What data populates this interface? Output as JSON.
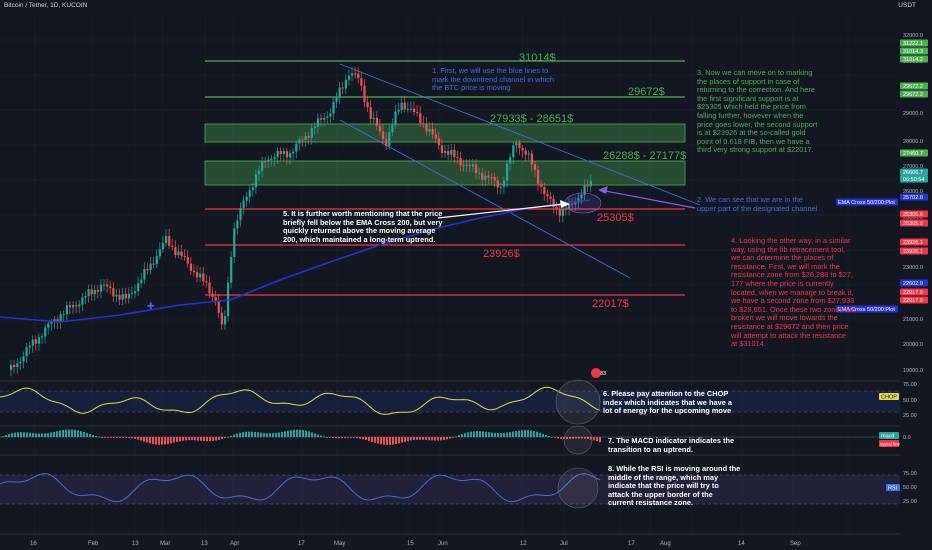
{
  "header": {
    "symbol_title": "Bitcoin / Tether, 1D, KUCOIN",
    "currency": "USDT"
  },
  "colors": {
    "background": "#131722",
    "candle_up": "#26a69a",
    "candle_down": "#ef5350",
    "level_green": "#4caf50",
    "level_red": "#f23645",
    "channel_blue": "#3f6ee0",
    "ema": "#2433d6",
    "chop": "#e6d84a",
    "rsi": "#3f6ee0",
    "note_purple": "#8a5be0"
  },
  "price_axis": {
    "ticks": [
      "32000.0",
      "30000.0",
      "29000.0",
      "28000.0",
      "27000.0",
      "26000.0",
      "25000.0",
      "24000.0",
      "23000.0",
      "22000.0",
      "21000.0",
      "20000.0",
      "19000.0"
    ],
    "tags": [
      {
        "label": "31222.1",
        "color": "#4caf50"
      },
      {
        "label": "31014.3",
        "color": "#4caf50"
      },
      {
        "label": "31014.2",
        "color": "#4caf50"
      },
      {
        "label": "29672.2",
        "color": "#4caf50"
      },
      {
        "label": "29672.2",
        "color": "#4caf50"
      },
      {
        "label": "27460.7",
        "color": "#4caf50"
      },
      {
        "label": "26606.7",
        "color": "#26a69a"
      },
      {
        "label": "06:50:54",
        "color": "#26a69a"
      },
      {
        "label": "25702.8",
        "color": "#2433d6"
      },
      {
        "label": "25305.9",
        "color": "#f23645"
      },
      {
        "label": "25305.9",
        "color": "#f23645"
      },
      {
        "label": "23926.1",
        "color": "#f23645"
      },
      {
        "label": "23926.1",
        "color": "#f23645"
      },
      {
        "label": "22602.9",
        "color": "#2433d6"
      },
      {
        "label": "22017.0",
        "color": "#f23645"
      },
      {
        "label": "22017.0",
        "color": "#f23645"
      }
    ]
  },
  "indicator_axes": {
    "chop": {
      "ticks": [
        "75.00",
        "50.00",
        "25.00"
      ],
      "tag": "CHOP"
    },
    "macd": {
      "ticks": [
        "0.0"
      ],
      "tags": [
        "macd",
        "signal line"
      ]
    },
    "rsi": {
      "ticks": [
        "75.00",
        "50.00",
        "25.00"
      ],
      "tag": "RSI"
    }
  },
  "time_axis": {
    "labels": [
      "16",
      "Feb",
      "13",
      "Mar",
      "13",
      "Apr",
      "17",
      "May",
      "15",
      "Jun",
      "12",
      "Jul",
      "17",
      "Aug",
      "14",
      "Sep"
    ]
  },
  "levels": [
    {
      "label": "31014$",
      "color": "#4caf50"
    },
    {
      "label": "29672$",
      "color": "#4caf50"
    },
    {
      "label": "27933$ - 28651$",
      "color": "#4caf50"
    },
    {
      "label": "26288$ - 27177$",
      "color": "#4caf50"
    },
    {
      "label": "25305$",
      "color": "#f23645"
    },
    {
      "label": "23926$",
      "color": "#f23645"
    },
    {
      "label": "22017$",
      "color": "#f23645"
    }
  ],
  "ema_tags": [
    "EMA Cross 50/200:Plot",
    "EMA Cross 50/200:Plot"
  ],
  "flag_label": "33",
  "notes": {
    "n1": "1. First, we will use the blue lines to\nmark the downtrend channel in which\nthe BTC price is moving",
    "n2": "2. We can see that we are in the\nupper part of the designated channel",
    "n3": "3. Now we can move on to marking\nthe places of support in case of\nreturning to the correction. And here\nthe first significant support is at\n$25305 which held the price from\nfalling further, however when the\nprice goes lower, the second support\nis at $23926 at the so-called gold\npoint of 0.618 FIB, then we have a\nthird very strong support at $22017.",
    "n4": "4. Looking the other way, in a similar\nway, using the fib retracement tool,\nwe can determine the places of\nresistance. First, we will mark the\nresistance zone from $26,288 to $27,\n177 where the price is currently\nlocated, when we manage to break it,\nwe have a second zone from $27,933\nto $28,651. Once these two zones are\nbroken we will move towards the\nresistance at $29672 and then price\nwill attempt to attack the resistance\nat $31014.",
    "n5": "5. It is further worth mentioning that the price\nbriefly fell below the EMA Cross 200, but very\nquickly returned above the moving average\n200, which maintained a long-term uptrend.",
    "n6": "6. Please pay attention to the CHOP\nindex which indicates that we have a\nlot of energy for the upcoming move",
    "n7": "7. The MACD indicator indicates the\ntransition to an uptrend.",
    "n8": "8. While the RSI is moving around the\nmiddle of the range, which may\nindicate that the price will try to\nattack the upper border of the\ncurrent resistance zone."
  }
}
